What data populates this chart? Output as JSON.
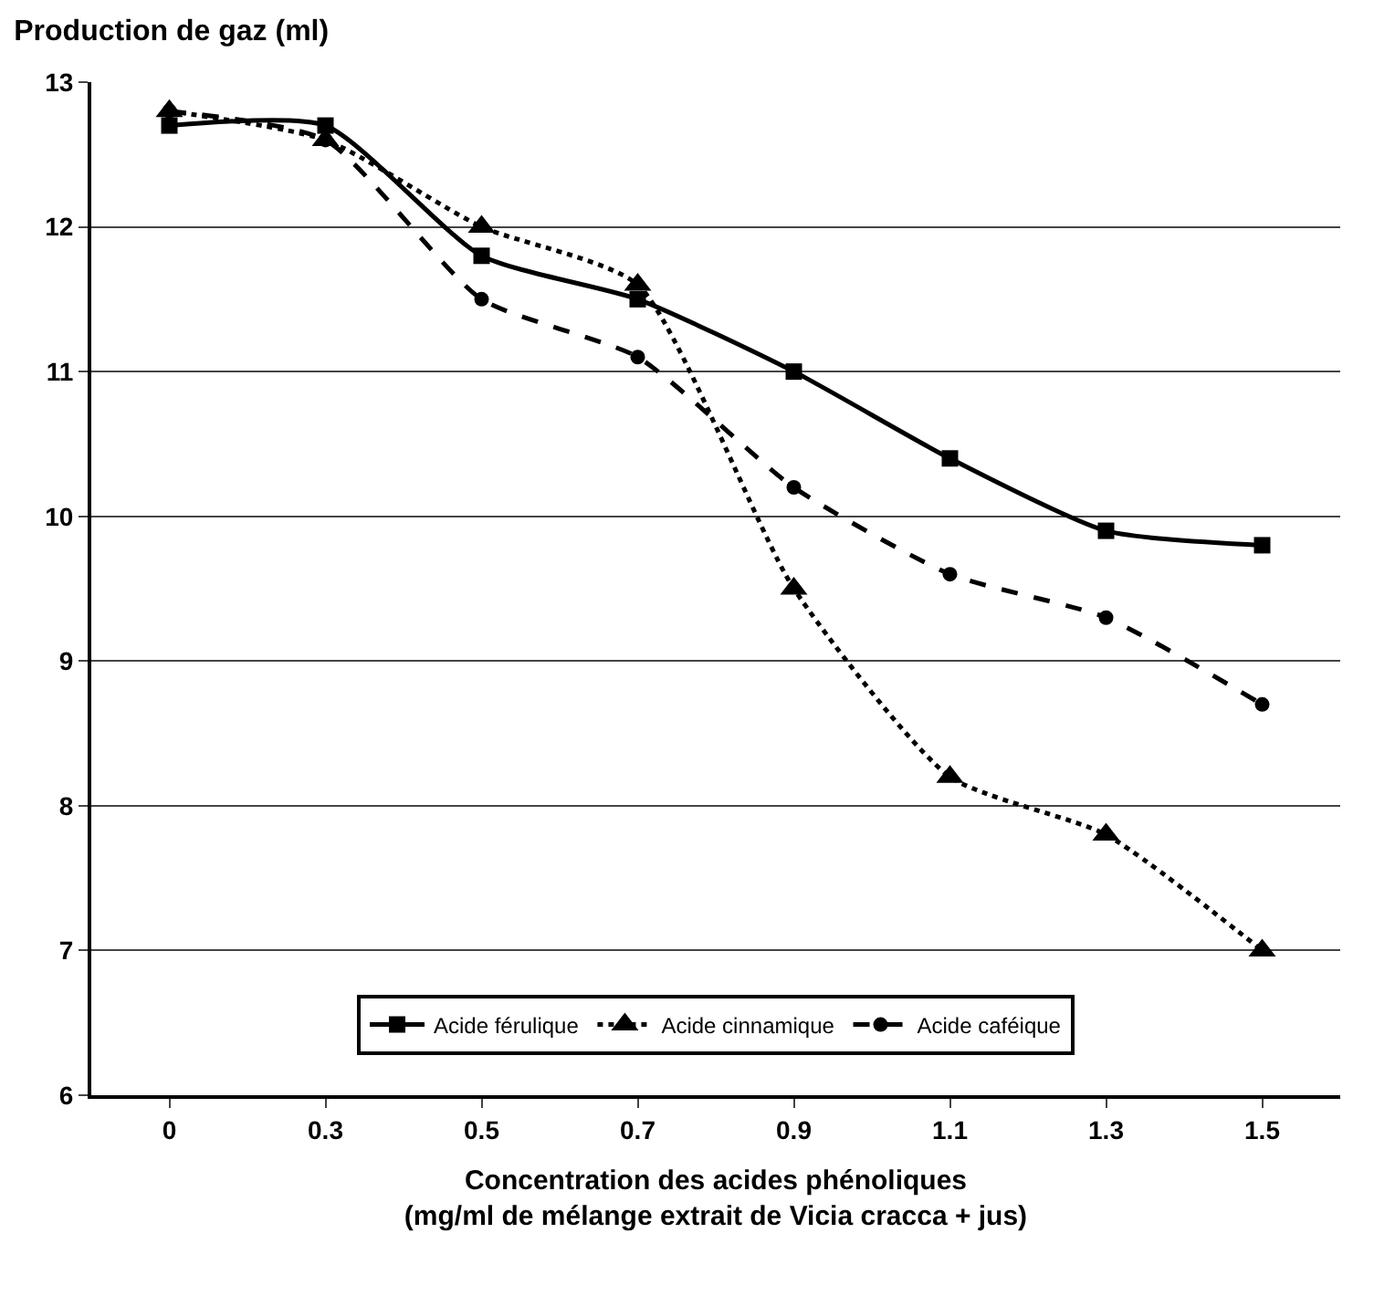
{
  "chart_data": {
    "type": "line",
    "title": "Production de gaz (ml)",
    "xlabel": "Concentration des acides phénoliques\n(mg/ml de mélange extrait de Vicia cracca + jus)",
    "categories": [
      "0",
      "0.3",
      "0.5",
      "0.7",
      "0.9",
      "1.1",
      "1.3",
      "1.5"
    ],
    "series": [
      {
        "name": "Acide férulique",
        "color": "#000000",
        "marker": "square",
        "line_style": "solid",
        "values": [
          12.7,
          12.7,
          11.8,
          11.5,
          11.0,
          10.4,
          9.9,
          9.8
        ]
      },
      {
        "name": "Acide cinnamique",
        "color": "#000000",
        "marker": "triangle",
        "line_style": "dotted",
        "values": [
          12.8,
          12.6,
          12.0,
          11.6,
          9.5,
          8.2,
          7.8,
          7.0
        ]
      },
      {
        "name": "Acide caféique",
        "color": "#000000",
        "marker": "circle",
        "line_style": "dashed",
        "values": [
          12.8,
          12.6,
          11.5,
          11.1,
          10.2,
          9.6,
          9.3,
          8.7
        ]
      }
    ],
    "ylim": [
      6,
      13
    ],
    "yticks": [
      6,
      7,
      8,
      9,
      10,
      11,
      12,
      13
    ],
    "grid": "y",
    "legend": "bottom"
  }
}
